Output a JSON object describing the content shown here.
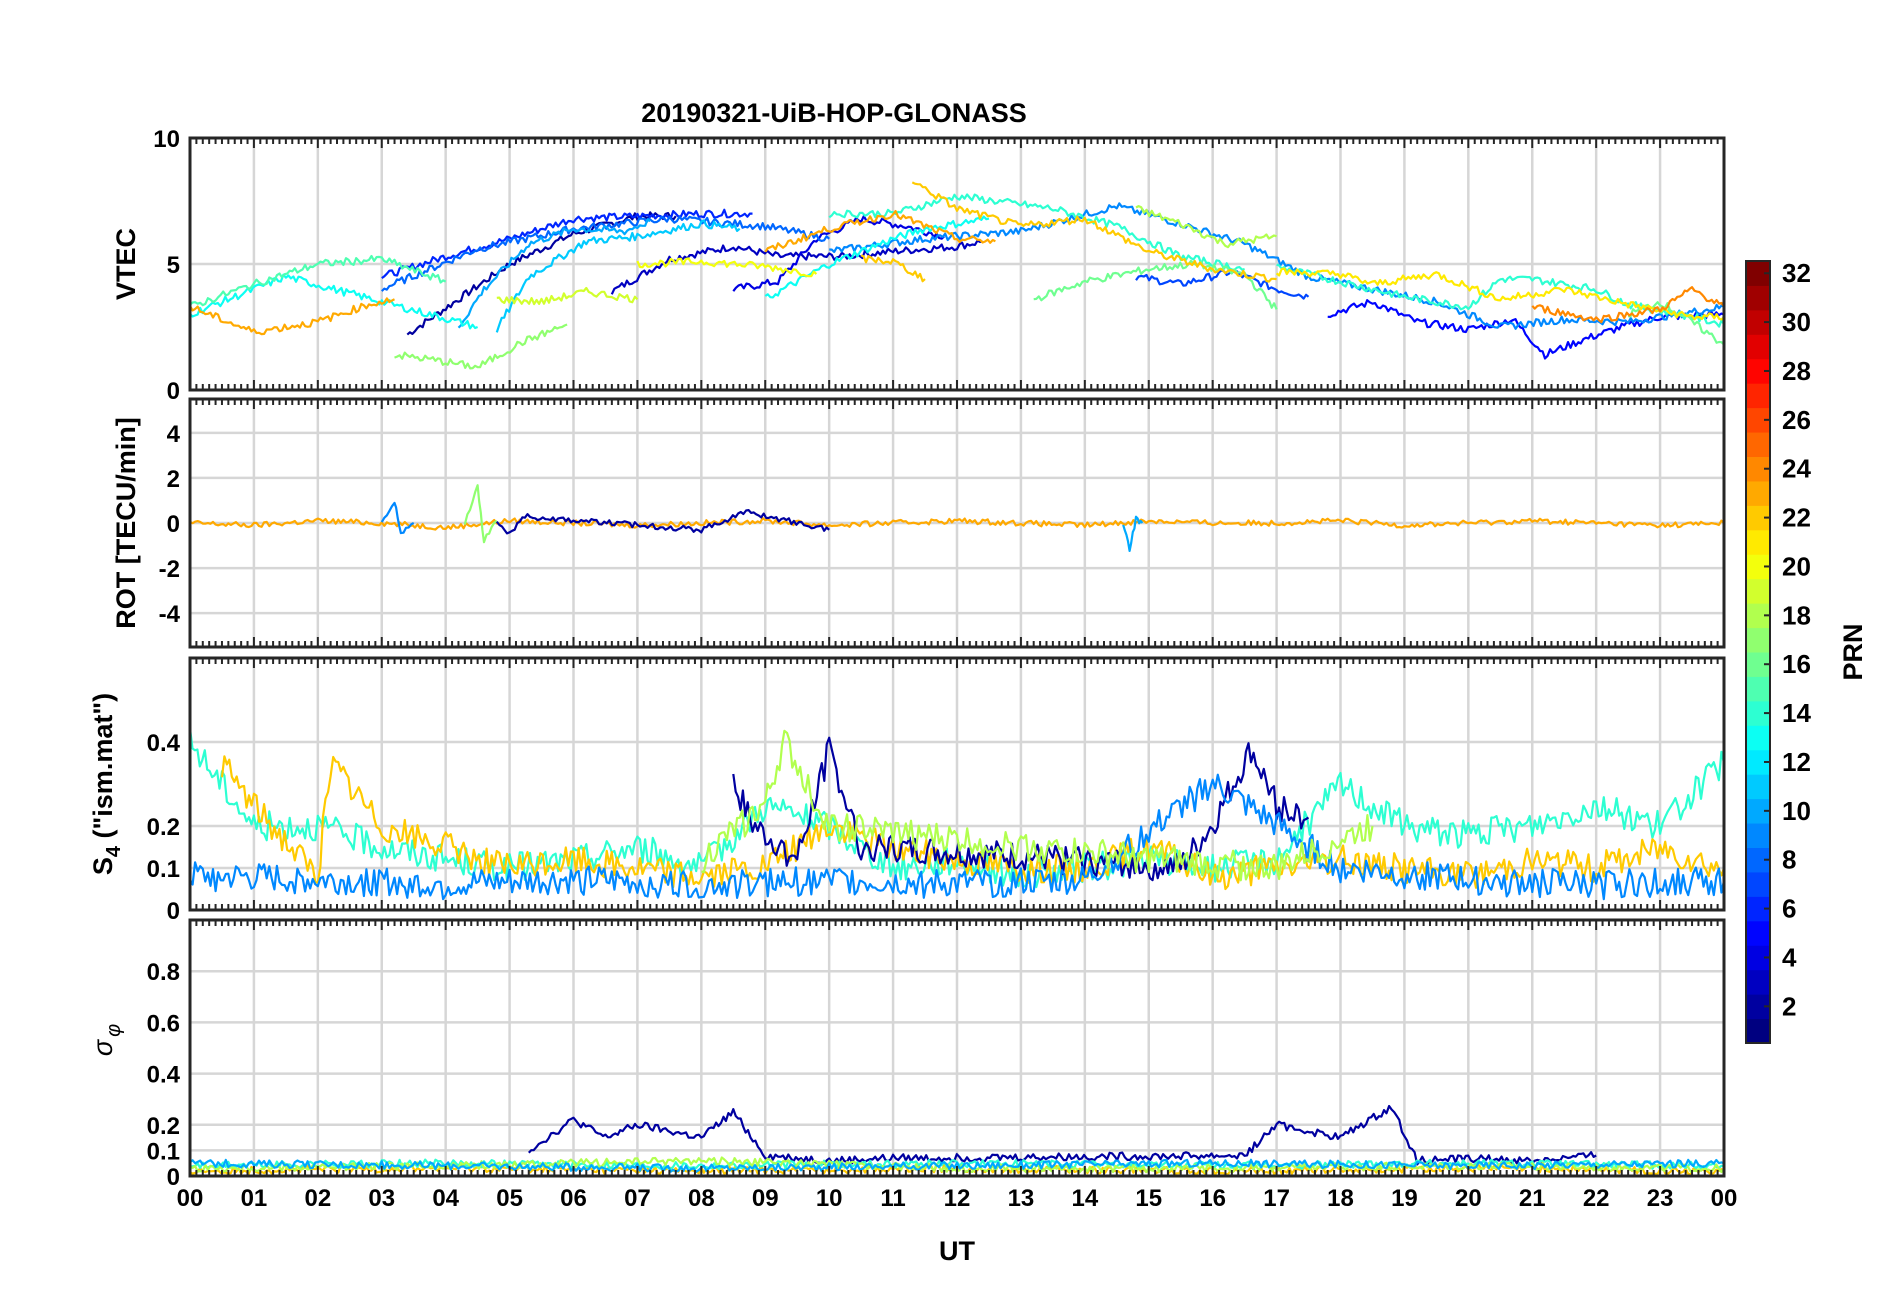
{
  "title": "20190321-UiB-HOP-GLONASS",
  "xlabel": "UT",
  "x_ticks": [
    "00",
    "01",
    "02",
    "03",
    "04",
    "05",
    "06",
    "07",
    "08",
    "09",
    "10",
    "11",
    "12",
    "13",
    "14",
    "15",
    "16",
    "17",
    "18",
    "19",
    "20",
    "21",
    "22",
    "23",
    "00"
  ],
  "colorbar": {
    "label": "PRN",
    "range": [
      1,
      32
    ],
    "ticks": [
      "2",
      "4",
      "6",
      "8",
      "10",
      "12",
      "14",
      "16",
      "18",
      "20",
      "22",
      "24",
      "26",
      "28",
      "30",
      "32"
    ]
  },
  "chart_data": [
    {
      "type": "line",
      "panel": "VTEC",
      "ylabel": "VTEC",
      "xlim": [
        0,
        24
      ],
      "ylim": [
        0,
        10
      ],
      "yticks": [
        0,
        5,
        10
      ],
      "ytick_labels": [
        "0",
        "5",
        "10"
      ],
      "series": [
        {
          "name": "PRN 2",
          "prn": 2,
          "x": [
            3.4,
            4.2,
            5.0,
            6.0,
            7.0,
            7.6
          ],
          "y": [
            2.2,
            3.6,
            5.0,
            6.2,
            6.9,
            6.9
          ]
        },
        {
          "name": "PRN 3",
          "prn": 3,
          "x": [
            6.6,
            7.5,
            8.5,
            9.2,
            10.2,
            11.0,
            12.0,
            12.4
          ],
          "y": [
            3.9,
            5.2,
            5.7,
            5.3,
            5.3,
            5.5,
            5.7,
            5.9
          ]
        },
        {
          "name": "PRN 4",
          "prn": 4,
          "x": [
            8.5,
            9.2,
            9.8,
            10.5,
            11.2,
            11.8
          ],
          "y": [
            4.0,
            4.3,
            6.0,
            6.8,
            6.5,
            6.1
          ]
        },
        {
          "name": "PRN 6",
          "prn": 6,
          "x": [
            3.0,
            4.0,
            5.0,
            6.0,
            7.0,
            8.0,
            8.8
          ],
          "y": [
            4.5,
            5.3,
            6.0,
            6.8,
            6.9,
            7.0,
            7.0
          ]
        },
        {
          "name": "PRN 7",
          "prn": 7,
          "x": [
            14.8,
            15.5,
            16.3,
            17.0,
            17.5
          ],
          "y": [
            4.5,
            4.2,
            4.7,
            4.0,
            3.7
          ]
        },
        {
          "name": "PRN 5",
          "prn": 5,
          "x": [
            17.8,
            18.5,
            19.2,
            20.0,
            20.7,
            21.2,
            21.8,
            22.4,
            23.0,
            24.0
          ],
          "y": [
            3.0,
            3.5,
            2.7,
            2.4,
            2.8,
            1.4,
            2.0,
            2.5,
            2.9,
            3.0
          ]
        },
        {
          "name": "PRN 8",
          "prn": 8,
          "x": [
            3.0,
            4.5,
            6.0,
            7.5,
            9.0,
            10.0
          ],
          "y": [
            4.0,
            5.6,
            6.4,
            6.8,
            6.5,
            6.0
          ]
        },
        {
          "name": "PRN 9",
          "prn": 9,
          "x": [
            10.0,
            11.5,
            13.0,
            14.5,
            15.5,
            16.5,
            17.5,
            18.5,
            19.5,
            20.5,
            21.5,
            22.5,
            23.5,
            24.0
          ],
          "y": [
            5.5,
            6.0,
            6.3,
            7.3,
            6.6,
            5.8,
            4.5,
            4.0,
            3.5,
            2.5,
            2.8,
            2.7,
            3.1,
            3.3
          ]
        },
        {
          "name": "PRN 10",
          "prn": 10,
          "x": [
            4.2,
            4.6,
            5.3,
            6.0,
            6.8,
            7.2
          ],
          "y": [
            2.5,
            4.0,
            5.8,
            6.4,
            6.3,
            6.7
          ]
        },
        {
          "name": "PRN 11",
          "prn": 11,
          "x": [
            4.8,
            5.3,
            6.2,
            7.0,
            8.0,
            8.6
          ],
          "y": [
            2.4,
            4.5,
            5.9,
            6.1,
            6.6,
            6.4
          ]
        },
        {
          "name": "PRN 13",
          "prn": 13,
          "x": [
            9.0,
            10.0,
            11.0,
            11.5,
            12.5
          ],
          "y": [
            3.6,
            5.0,
            6.0,
            6.4,
            6.8
          ]
        },
        {
          "name": "PRN 13b",
          "prn": 13,
          "x": [
            0.0,
            1.5,
            3.0,
            4.5
          ],
          "y": [
            3.0,
            4.5,
            3.5,
            2.5
          ]
        },
        {
          "name": "PRN 14",
          "prn": 14,
          "x": [
            17.0,
            18.0,
            19.0,
            20.0,
            20.5,
            21.0,
            22.0,
            22.5,
            23.5,
            24.0
          ],
          "y": [
            4.9,
            4.3,
            3.7,
            3.3,
            4.4,
            4.4,
            4.0,
            3.4,
            2.9,
            2.6
          ]
        },
        {
          "name": "PRN 14b",
          "prn": 14,
          "x": [
            10.0,
            11.0,
            12.0,
            13.5,
            14.5,
            15.5,
            16.5
          ],
          "y": [
            7.0,
            7.0,
            7.7,
            7.2,
            6.5,
            5.3,
            4.8
          ]
        },
        {
          "name": "PRN 15",
          "prn": 15,
          "x": [
            0.0,
            1.0,
            2.0,
            3.0,
            4.0
          ],
          "y": [
            3.3,
            4.2,
            5.0,
            5.2,
            4.3
          ]
        },
        {
          "name": "PRN 16",
          "prn": 16,
          "x": [
            13.2,
            14.0,
            15.0,
            15.7,
            16.5,
            17.0
          ],
          "y": [
            3.6,
            4.3,
            4.8,
            5.0,
            4.6,
            3.2
          ]
        },
        {
          "name": "PRN 16b",
          "prn": 16,
          "x": [
            22.5,
            23.0,
            23.5,
            24.0
          ],
          "y": [
            3.0,
            3.5,
            2.7,
            1.8
          ]
        },
        {
          "name": "PRN 17",
          "prn": 17,
          "x": [
            3.2,
            3.8,
            4.5,
            5.2,
            5.9
          ],
          "y": [
            1.4,
            1.2,
            0.9,
            1.9,
            2.6
          ]
        },
        {
          "name": "PRN 18",
          "prn": 18,
          "x": [
            14.8,
            15.5,
            16.2,
            17.0
          ],
          "y": [
            7.2,
            6.6,
            5.8,
            6.1
          ]
        },
        {
          "name": "PRN 19",
          "prn": 19,
          "x": [
            4.8,
            5.5,
            6.2,
            7.0
          ],
          "y": [
            3.6,
            3.5,
            3.9,
            3.6
          ]
        },
        {
          "name": "PRN 20",
          "prn": 20,
          "x": [
            7.0,
            8.0,
            9.0,
            9.8
          ],
          "y": [
            5.0,
            5.1,
            4.9,
            4.6
          ]
        },
        {
          "name": "PRN 21",
          "prn": 21,
          "x": [
            17.0,
            18.0,
            18.5,
            19.5,
            20.5,
            21.5,
            22.5,
            23.5,
            24.0
          ],
          "y": [
            4.7,
            4.6,
            4.2,
            4.6,
            3.6,
            4.0,
            3.4,
            2.9,
            2.9
          ]
        },
        {
          "name": "PRN 22",
          "prn": 22,
          "x": [
            11.3,
            12.0,
            13.0,
            14.0,
            15.0,
            16.0,
            17.0
          ],
          "y": [
            8.3,
            7.2,
            6.5,
            6.8,
            5.5,
            4.8,
            4.4
          ]
        },
        {
          "name": "PRN 23",
          "prn": 23,
          "x": [
            0.0,
            1.0,
            2.0,
            2.8,
            3.2
          ],
          "y": [
            3.3,
            2.3,
            2.7,
            3.4,
            3.6
          ]
        },
        {
          "name": "PRN 23b",
          "prn": 23,
          "x": [
            9.0,
            10.0,
            11.0,
            12.0,
            12.6
          ],
          "y": [
            5.5,
            6.4,
            7.0,
            6.0,
            5.9
          ]
        },
        {
          "name": "PRN 24",
          "prn": 24,
          "x": [
            21.0,
            22.0,
            23.0,
            23.5,
            24.0
          ],
          "y": [
            3.3,
            2.8,
            3.2,
            4.0,
            3.3
          ]
        },
        {
          "name": "PRN 22b",
          "prn": 22,
          "x": [
            10.5,
            11.0,
            11.5
          ],
          "y": [
            5.2,
            5.1,
            4.4
          ]
        }
      ]
    },
    {
      "type": "line",
      "panel": "ROT",
      "ylabel": "ROT [TECU/min]",
      "xlim": [
        0,
        24
      ],
      "ylim": [
        -5.5,
        5.5
      ],
      "yticks": [
        -4,
        -2,
        0,
        2,
        4
      ],
      "ytick_labels": [
        "-4",
        "-2",
        "0",
        "2",
        "4"
      ],
      "series": [
        {
          "name": "PRN 23",
          "prn": 23,
          "x": [
            0,
            1,
            2,
            3,
            4,
            5,
            6,
            7,
            8,
            9,
            10,
            11,
            12,
            13,
            14,
            15,
            16,
            17,
            18,
            19,
            20,
            21,
            22,
            23,
            24
          ],
          "y": [
            0.0,
            -0.1,
            0.1,
            0.0,
            -0.2,
            0.1,
            0.0,
            -0.1,
            0.0,
            0.1,
            -0.1,
            0.0,
            0.1,
            0.0,
            -0.1,
            0.1,
            0.0,
            0.0,
            0.1,
            -0.1,
            0.0,
            0.1,
            0.0,
            -0.1,
            0.0
          ]
        },
        {
          "name": "PRN 17",
          "prn": 17,
          "x": [
            4.3,
            4.5,
            4.6,
            4.8
          ],
          "y": [
            0.0,
            1.6,
            -0.8,
            0.1
          ]
        },
        {
          "name": "PRN 10",
          "prn": 10,
          "x": [
            14.6,
            14.7,
            14.8,
            14.9
          ],
          "y": [
            0.0,
            -1.2,
            0.2,
            0.0
          ]
        },
        {
          "name": "PRN 9",
          "prn": 9,
          "x": [
            3.0,
            3.2,
            3.3,
            3.5
          ],
          "y": [
            0.0,
            1.0,
            -0.5,
            0.0
          ]
        },
        {
          "name": "PRN 2",
          "prn": 2,
          "x": [
            4.8,
            5.0,
            5.2,
            8.0,
            8.7,
            10.0
          ],
          "y": [
            0.0,
            -0.5,
            0.3,
            -0.3,
            0.5,
            -0.3
          ]
        }
      ]
    },
    {
      "type": "line",
      "panel": "S4",
      "ylabel": "S4 (\"ism.mat\")",
      "ylabel_parts": {
        "main": "S",
        "sub": "4",
        "rest": " (\"ism.mat\")"
      },
      "xlim": [
        0,
        24
      ],
      "ylim": [
        0,
        0.6
      ],
      "yticks": [
        0,
        0.1,
        0.2,
        0.4
      ],
      "ytick_labels": [
        "0",
        "0.1",
        "0.2",
        "0.4"
      ],
      "series": [
        {
          "name": "PRN 14",
          "prn": 14,
          "x": [
            0,
            0.5,
            1,
            2,
            3,
            4,
            5,
            6,
            7,
            8,
            9,
            10,
            11,
            12,
            13,
            14,
            15,
            16,
            17,
            18,
            19,
            20,
            21,
            22,
            23,
            24
          ],
          "y": [
            0.4,
            0.3,
            0.2,
            0.2,
            0.15,
            0.12,
            0.1,
            0.12,
            0.15,
            0.1,
            0.25,
            0.2,
            0.1,
            0.12,
            0.08,
            0.1,
            0.12,
            0.1,
            0.12,
            0.3,
            0.2,
            0.18,
            0.2,
            0.25,
            0.2,
            0.35
          ]
        },
        {
          "name": "PRN 22",
          "prn": 22,
          "x": [
            0.5,
            1,
            2,
            2.2,
            3,
            4,
            5,
            6,
            7,
            8,
            9,
            10,
            11,
            12,
            13,
            14,
            15,
            16,
            17,
            18,
            19,
            20,
            21,
            22,
            23,
            24
          ],
          "y": [
            0.35,
            0.25,
            0.08,
            0.35,
            0.2,
            0.15,
            0.1,
            0.12,
            0.1,
            0.08,
            0.1,
            0.2,
            0.15,
            0.12,
            0.1,
            0.1,
            0.15,
            0.08,
            0.1,
            0.12,
            0.1,
            0.08,
            0.12,
            0.1,
            0.15,
            0.1
          ]
        },
        {
          "name": "PRN 2",
          "prn": 2,
          "x": [
            8.5,
            8.8,
            9.5,
            10.0,
            10.5,
            15.5,
            16.0,
            16.6,
            17.0,
            17.5
          ],
          "y": [
            0.3,
            0.2,
            0.12,
            0.38,
            0.15,
            0.1,
            0.2,
            0.38,
            0.25,
            0.22
          ]
        },
        {
          "name": "PRN 9",
          "prn": 9,
          "x": [
            0,
            2,
            4,
            6,
            8,
            10,
            12,
            14,
            16,
            18,
            20,
            22,
            24
          ],
          "y": [
            0.08,
            0.07,
            0.06,
            0.07,
            0.06,
            0.07,
            0.06,
            0.07,
            0.3,
            0.1,
            0.07,
            0.06,
            0.07
          ]
        },
        {
          "name": "PRN 18",
          "prn": 18,
          "x": [
            8.0,
            9.0,
            9.3,
            10.0,
            15.0,
            17.0,
            18.5
          ],
          "y": [
            0.12,
            0.25,
            0.4,
            0.2,
            0.12,
            0.1,
            0.2
          ]
        }
      ]
    },
    {
      "type": "line",
      "panel": "sigma_phi",
      "ylabel": "σφ",
      "ylabel_parts": {
        "main": "σ",
        "sub": "φ"
      },
      "xlim": [
        0,
        24
      ],
      "ylim": [
        0,
        1.0
      ],
      "yticks": [
        0,
        0.1,
        0.2,
        0.4,
        0.6,
        0.8
      ],
      "ytick_labels": [
        "0",
        "0.1",
        "0.2",
        "0.4",
        "0.6",
        "0.8"
      ],
      "series": [
        {
          "name": "PRN 2",
          "prn": 2,
          "x": [
            5.3,
            6.0,
            6.5,
            7.0,
            8.0,
            8.5,
            9.0,
            10.0,
            11.0,
            16.5,
            17.0,
            18.0,
            18.8,
            19.2,
            20.0,
            21.0,
            22.0
          ],
          "y": [
            0.1,
            0.22,
            0.15,
            0.2,
            0.15,
            0.25,
            0.08,
            0.06,
            0.07,
            0.08,
            0.2,
            0.15,
            0.27,
            0.06,
            0.07,
            0.06,
            0.08
          ]
        },
        {
          "name": "PRN 22",
          "prn": 22,
          "x": [
            0,
            4,
            8,
            12,
            16,
            20,
            24
          ],
          "y": [
            0.02,
            0.03,
            0.02,
            0.03,
            0.02,
            0.03,
            0.02
          ]
        },
        {
          "name": "PRN 14",
          "prn": 14,
          "x": [
            0,
            4,
            8,
            12,
            16,
            20,
            24
          ],
          "y": [
            0.04,
            0.05,
            0.04,
            0.05,
            0.04,
            0.05,
            0.04
          ]
        },
        {
          "name": "PRN 18",
          "prn": 18,
          "x": [
            0,
            4,
            8,
            12,
            16,
            20,
            24
          ],
          "y": [
            0.03,
            0.04,
            0.06,
            0.03,
            0.03,
            0.04,
            0.03
          ]
        },
        {
          "name": "PRN 10",
          "prn": 10,
          "x": [
            0,
            4,
            8,
            12,
            16,
            20,
            24
          ],
          "y": [
            0.05,
            0.04,
            0.03,
            0.04,
            0.05,
            0.04,
            0.05
          ]
        }
      ]
    }
  ]
}
